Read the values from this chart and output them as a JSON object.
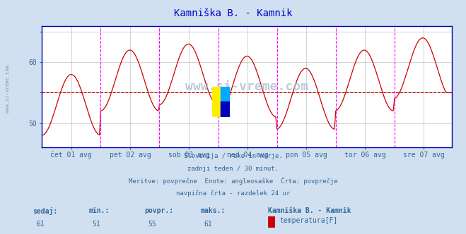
{
  "title": "Kamniška B. - Kamnik",
  "title_color": "#0000cc",
  "bg_color": "#d0e0f0",
  "plot_bg_color": "#ffffff",
  "grid_color": "#c0c0c0",
  "line_color": "#cc0000",
  "avg_line_color": "#cc0000",
  "vline_color": "#ff00ff",
  "xlabel_color": "#336699",
  "text_color": "#336699",
  "spine_color": "#0000aa",
  "min_val": 51,
  "max_val": 61,
  "avg_val": 55,
  "current_val": 61,
  "ylim": [
    46,
    66
  ],
  "yticks": [
    50,
    55,
    60,
    65
  ],
  "ytick_labels": [
    "50",
    "",
    "60",
    ""
  ],
  "n_points": 336,
  "x_labels": [
    "čet 01 avg",
    "pet 02 avg",
    "sob 03 avg",
    "ned 04 avg",
    "pon 05 avg",
    "tor 06 avg",
    "sre 07 avg"
  ],
  "footer_lines": [
    "Slovenija / reke in morje.",
    "zadnji teden / 30 minut.",
    "Meritve: povprečne  Enote: angleosaške  Črta: povprečje",
    "navpična črta - razdelek 24 ur"
  ],
  "legend_title": "Kamniška B. - Kamnik",
  "legend_label": "temperatura[F]",
  "legend_color": "#cc0000",
  "stat_labels": [
    "sedaj:",
    "min.:",
    "povpr.:",
    "maks.:"
  ],
  "stat_values": [
    "61",
    "51",
    "55",
    "61"
  ],
  "watermark": "www.si-vreme.com",
  "watermark_color": "#aabbcc",
  "side_watermark_color": "#336699"
}
